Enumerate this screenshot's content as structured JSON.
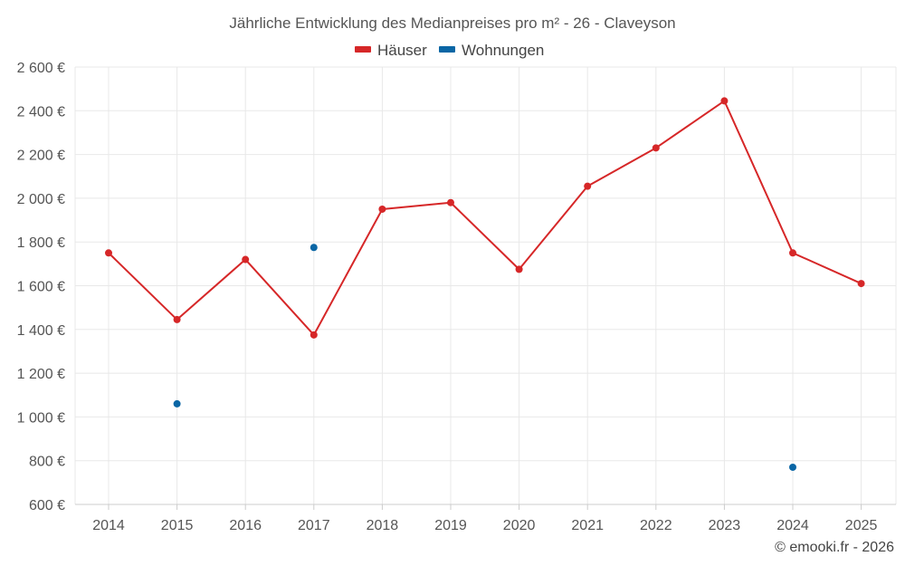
{
  "chart_data": {
    "type": "line",
    "title": "Jährliche Entwicklung des Medianpreises pro m² - 26 - Claveyson",
    "categories": [
      "2014",
      "2015",
      "2016",
      "2017",
      "2018",
      "2019",
      "2020",
      "2021",
      "2022",
      "2023",
      "2024",
      "2025"
    ],
    "series": [
      {
        "name": "Häuser",
        "color": "#d62728",
        "values": [
          1750,
          1445,
          1720,
          1375,
          1950,
          1980,
          1675,
          2055,
          2230,
          2445,
          1750,
          1610
        ]
      },
      {
        "name": "Wohnungen",
        "color": "#0a66a5",
        "values": [
          null,
          1060,
          null,
          1775,
          null,
          null,
          null,
          null,
          null,
          null,
          770,
          null
        ]
      }
    ],
    "ylim": [
      600,
      2600
    ],
    "yticks": [
      600,
      800,
      1000,
      1200,
      1400,
      1600,
      1800,
      2000,
      2200,
      2400,
      2600
    ],
    "ytick_labels": [
      "600 €",
      "800 €",
      "1 000 €",
      "1 200 €",
      "1 400 €",
      "1 600 €",
      "1 800 €",
      "2 000 €",
      "2 200 €",
      "2 400 €",
      "2 600 €"
    ],
    "xlabel": "",
    "ylabel": "",
    "grid": true,
    "legend_position": "top-center"
  },
  "credit": "© emooki.fr - 2026"
}
